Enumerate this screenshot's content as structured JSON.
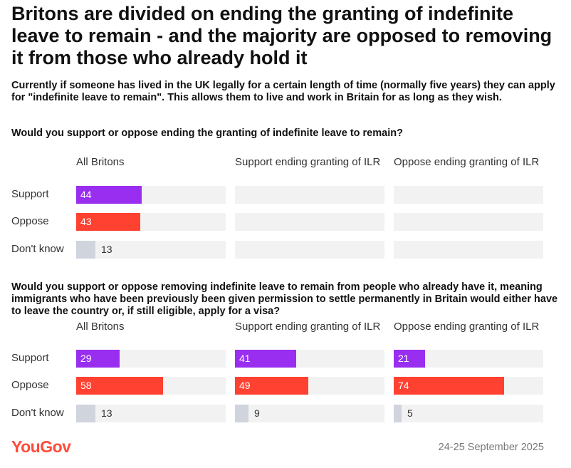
{
  "title": "Britons are divided on ending the granting of indefinite leave to remain - and the majority are opposed to removing it from those who already hold it",
  "subtitle": "Currently if someone has lived in the UK legally for a certain length of time (normally five years) they can apply for \"indefinite leave to remain\". This allows them to live and work in Britain for as long as they wish.",
  "brand": "YouGov",
  "date": "24-25 September 2025",
  "colors": {
    "support": "#9a2ef0",
    "oppose": "#ff4131",
    "dont_know": "#d0d5dd",
    "track": "#f2f2f2",
    "brand": "#ff4b3a"
  },
  "chart_data": [
    {
      "type": "bar",
      "title": "Would you support or oppose ending the granting of indefinite leave to remain?",
      "categories": [
        "Support",
        "Oppose",
        "Don't know"
      ],
      "xlim": [
        0,
        100
      ],
      "series": [
        {
          "name": "All Britons",
          "values": [
            44,
            43,
            13
          ]
        },
        {
          "name": "Support ending granting of ILR",
          "values": [
            null,
            null,
            null
          ]
        },
        {
          "name": "Oppose ending granting of ILR",
          "values": [
            null,
            null,
            null
          ]
        }
      ]
    },
    {
      "type": "bar",
      "title": "Would you support or oppose removing indefinite leave to remain from people who already have it, meaning immigrants who have been previously been given permission to settle permanently in Britain would either have to leave the country or, if still eligible, apply for a visa?",
      "categories": [
        "Support",
        "Oppose",
        "Don't know"
      ],
      "xlim": [
        0,
        100
      ],
      "series": [
        {
          "name": "All Britons",
          "values": [
            29,
            58,
            13
          ]
        },
        {
          "name": "Support ending granting of ILR",
          "values": [
            41,
            49,
            9
          ]
        },
        {
          "name": "Oppose ending granting of ILR",
          "values": [
            21,
            74,
            5
          ]
        }
      ]
    }
  ]
}
